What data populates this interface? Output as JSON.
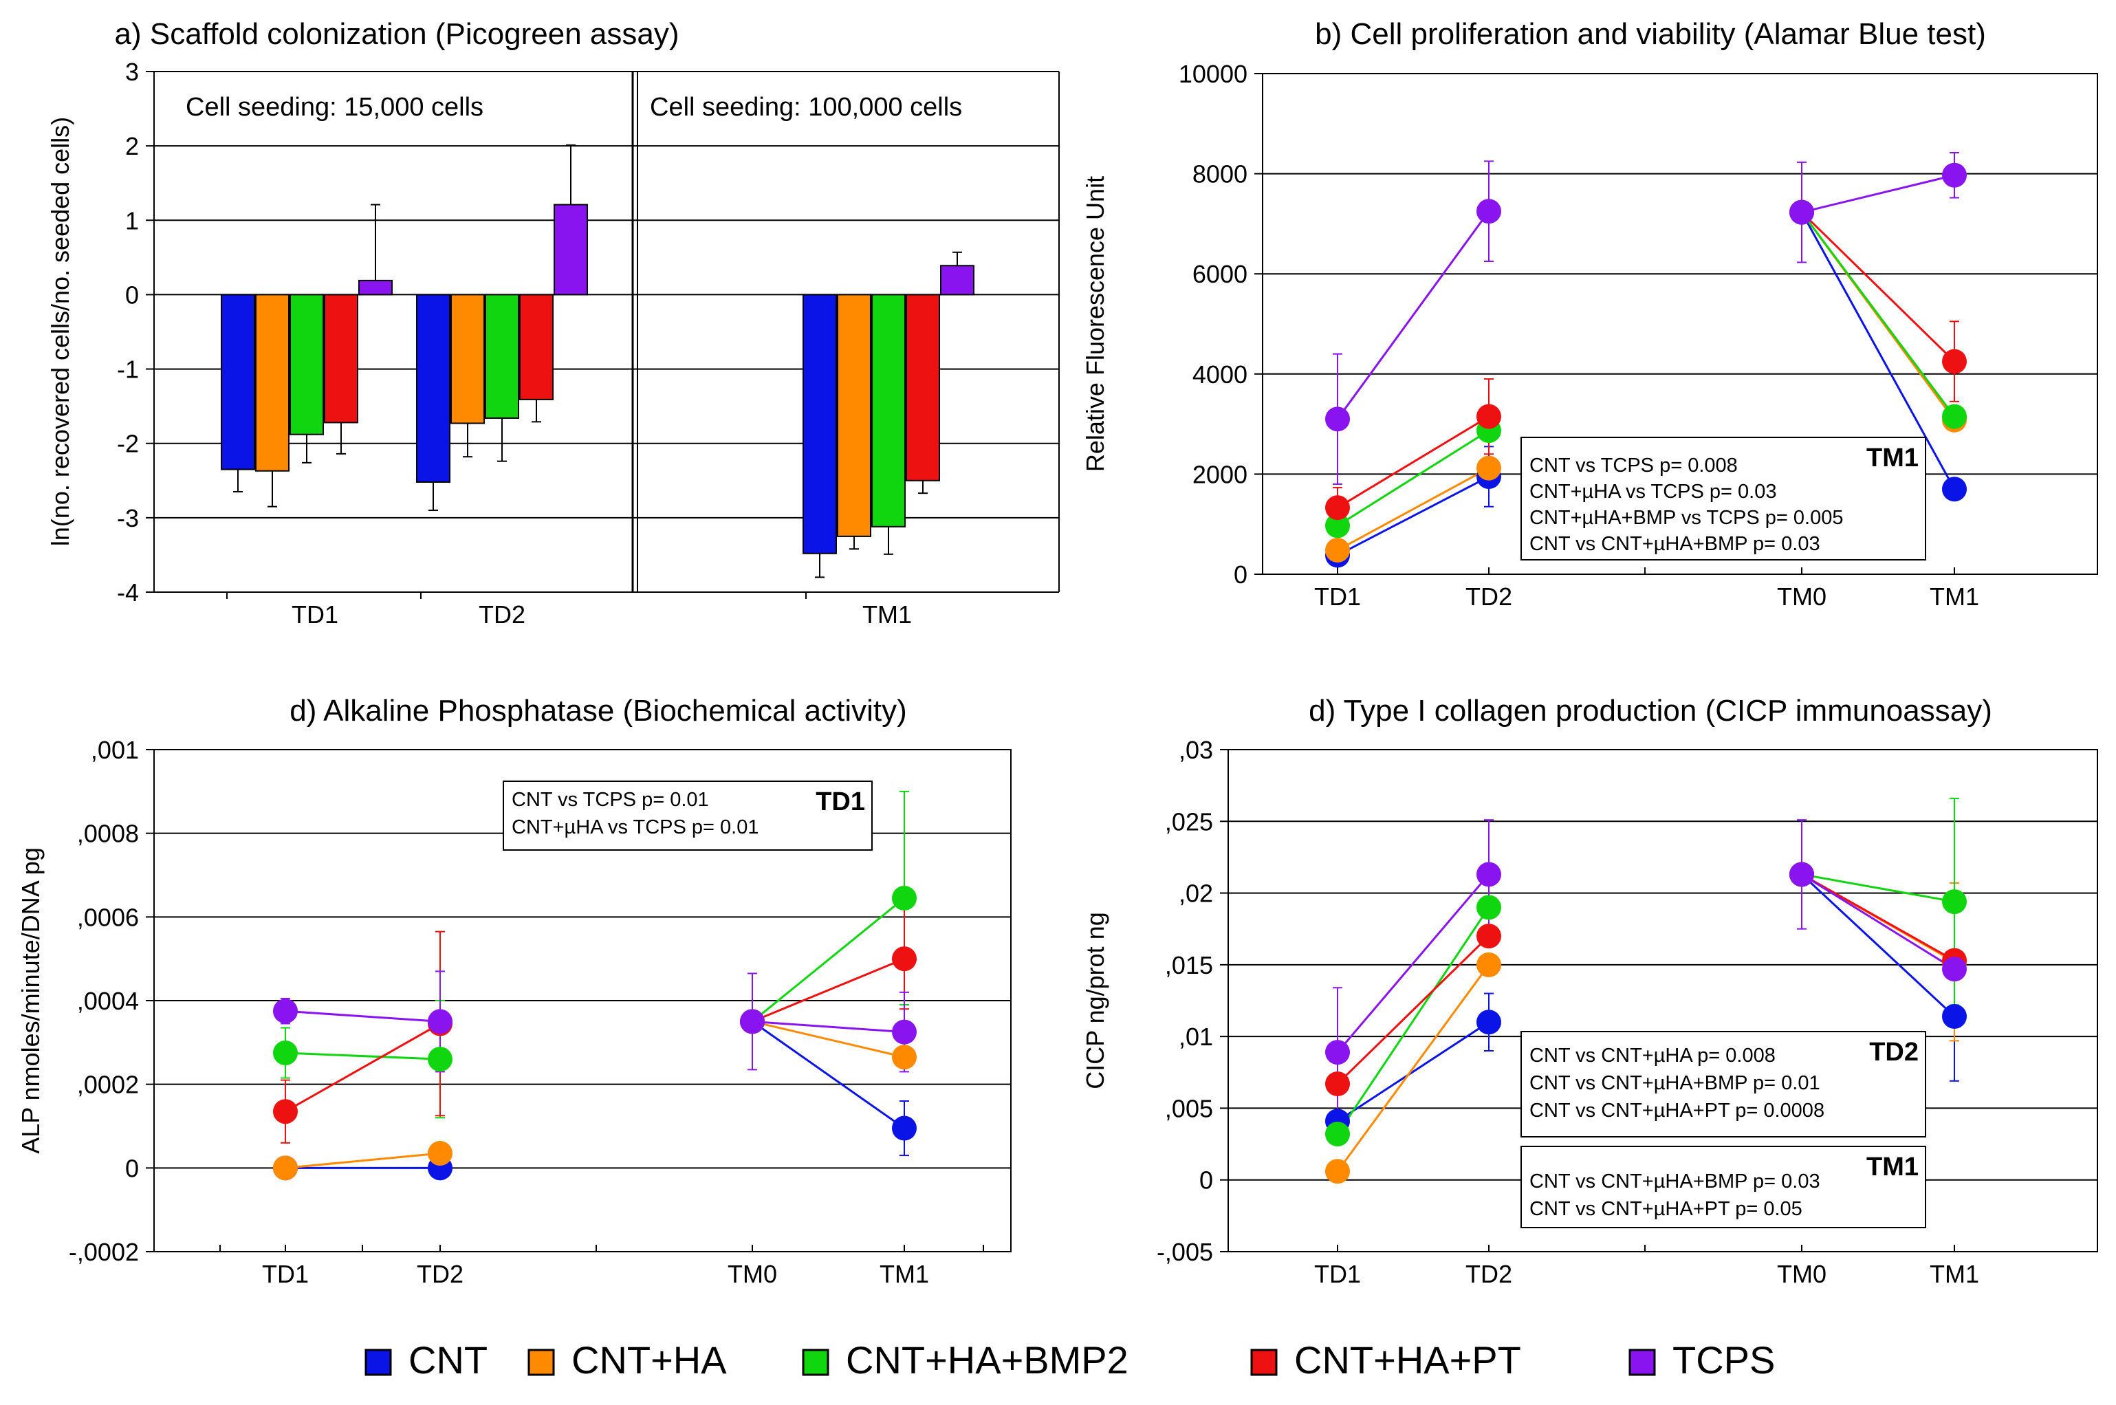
{
  "colors": {
    "CNT": "#0a14e6",
    "CNT+HA": "#ff8a00",
    "CNT+HA+BMP2": "#0fd60f",
    "CNT+HA+PT": "#ee1111",
    "TCPS": "#8a14f0"
  },
  "legend": [
    {
      "key": "CNT",
      "label": "CNT"
    },
    {
      "key": "CNT+HA",
      "label": "CNT+HA"
    },
    {
      "key": "CNT+HA+BMP2",
      "label": "CNT+HA+BMP2"
    },
    {
      "key": "CNT+HA+PT",
      "label": "CNT+HA+PT"
    },
    {
      "key": "TCPS",
      "label": "TCPS"
    }
  ],
  "chart_data": [
    {
      "id": "a",
      "type": "bar",
      "title": "a) Scaffold colonization (Picogreen assay)",
      "ylabel": "ln(no. recovered cells/no. seeded cells)",
      "xlabel": "",
      "ylim": [
        -4,
        3
      ],
      "yticks": [
        -4,
        -3,
        -2,
        -1,
        0,
        1,
        2,
        3
      ],
      "ytick_labels": [
        "-4",
        "-3",
        "-2",
        "-1",
        "0",
        "1",
        "2",
        "3"
      ],
      "grid": true,
      "annotations": [
        "Cell seeding: 15,000 cells",
        "Cell seeding: 100,000 cells"
      ],
      "categories": [
        "TD1",
        "TD2",
        "TM1"
      ],
      "series": [
        {
          "key": "CNT",
          "values": [
            -2.35,
            -2.52,
            -3.48
          ],
          "errors": [
            0.3,
            0.38,
            0.32
          ]
        },
        {
          "key": "CNT+HA",
          "values": [
            -2.37,
            -1.73,
            -3.25
          ],
          "errors": [
            0.48,
            0.45,
            0.17
          ]
        },
        {
          "key": "CNT+HA+BMP2",
          "values": [
            -1.88,
            -1.66,
            -3.12
          ],
          "errors": [
            0.38,
            0.58,
            0.37
          ]
        },
        {
          "key": "CNT+HA+PT",
          "values": [
            -1.72,
            -1.41,
            -2.5
          ],
          "errors": [
            0.42,
            0.3,
            0.17
          ]
        },
        {
          "key": "TCPS",
          "values": [
            0.19,
            1.21,
            0.39
          ],
          "errors": [
            1.02,
            0.8,
            0.18
          ]
        }
      ]
    },
    {
      "id": "b",
      "type": "line",
      "title": "b) Cell proliferation and viability (Alamar Blue test)",
      "ylabel": "Relative Fluorescence Unit",
      "xlabel": "",
      "ylim": [
        0,
        10000
      ],
      "yticks": [
        0,
        2000,
        4000,
        6000,
        8000,
        10000
      ],
      "ytick_labels": [
        "0",
        "2000",
        "4000",
        "6000",
        "8000",
        "10000"
      ],
      "grid": true,
      "x_categories": [
        "TD1",
        "TD2",
        "TM0",
        "TM1"
      ],
      "series": [
        {
          "key": "CNT",
          "values": [
            380,
            1950,
            7230,
            1700
          ],
          "errors": [
            null,
            600,
            null,
            null
          ]
        },
        {
          "key": "CNT+HA",
          "values": [
            480,
            2120,
            7230,
            3080
          ],
          "errors": [
            null,
            null,
            null,
            null
          ]
        },
        {
          "key": "CNT+HA+BMP2",
          "values": [
            970,
            2870,
            7230,
            3150
          ],
          "errors": [
            null,
            null,
            null,
            null
          ]
        },
        {
          "key": "CNT+HA+PT",
          "values": [
            1330,
            3150,
            7230,
            4250
          ],
          "errors": [
            400,
            750,
            null,
            800
          ]
        },
        {
          "key": "TCPS",
          "values": [
            3100,
            7250,
            7230,
            7970
          ],
          "errors": [
            1300,
            1000,
            1000,
            450
          ]
        }
      ],
      "stats_boxes": [
        {
          "heading": "TM1",
          "lines": [
            "CNT vs TCPS  p= 0.008",
            "CNT+µHA vs TCPS  p= 0.03",
            "CNT+µHA+BMP vs TCPS p= 0.005",
            "CNT vs CNT+µHA+BMP p= 0.03"
          ]
        }
      ]
    },
    {
      "id": "c",
      "type": "line",
      "title": "d) Alkaline Phosphatase (Biochemical activity)",
      "ylabel": "ALP nmoles/minute/DNA pg",
      "xlabel": "",
      "ylim": [
        -0.0002,
        0.001
      ],
      "yticks": [
        -0.0002,
        0,
        0.0002,
        0.0004,
        0.0006,
        0.0008,
        0.001
      ],
      "ytick_labels": [
        "-,0002",
        "0",
        ",0002",
        ",0004",
        ",0006",
        ",0008",
        ",001"
      ],
      "grid": true,
      "x_categories": [
        "TD1",
        "TD2",
        "TM0",
        "TM1"
      ],
      "series": [
        {
          "key": "CNT",
          "values": [
            0,
            0,
            0.00035,
            9.5e-05
          ],
          "errors": [
            null,
            null,
            null,
            6.5e-05
          ]
        },
        {
          "key": "CNT+HA",
          "values": [
            0,
            3.5e-05,
            0.00035,
            0.000265
          ],
          "errors": [
            null,
            null,
            null,
            null
          ]
        },
        {
          "key": "CNT+HA+BMP2",
          "values": [
            0.000275,
            0.00026,
            0.00035,
            0.000645
          ],
          "errors": [
            6e-05,
            0.00014,
            null,
            0.000255
          ]
        },
        {
          "key": "CNT+HA+PT",
          "values": [
            0.000135,
            0.000345,
            0.00035,
            0.0005
          ],
          "errors": [
            7.5e-05,
            0.00022,
            null,
            0.00012
          ]
        },
        {
          "key": "TCPS",
          "values": [
            0.000375,
            0.00035,
            0.00035,
            0.000325
          ],
          "errors": [
            3e-05,
            0.00012,
            0.000115,
            9.5e-05
          ]
        }
      ],
      "stats_boxes": [
        {
          "heading": "TD1",
          "lines": [
            "CNT vs TCPS  p= 0.01",
            "CNT+µHA vs TCPS p= 0.01"
          ]
        }
      ]
    },
    {
      "id": "d",
      "type": "line",
      "title": "d) Type I collagen production (CICP immunoassay)",
      "ylabel": "CICP ng/prot ng",
      "xlabel": "",
      "ylim": [
        -0.005,
        0.03
      ],
      "yticks": [
        -0.005,
        0,
        0.005,
        0.01,
        0.015,
        0.02,
        0.025,
        0.03
      ],
      "ytick_labels": [
        "-,005",
        "0",
        ",005",
        ",01",
        ",015",
        ",02",
        ",025",
        ",03"
      ],
      "grid": true,
      "x_categories": [
        "TD1",
        "TD2",
        "TM0",
        "TM1"
      ],
      "series": [
        {
          "key": "CNT",
          "values": [
            0.0041,
            0.011,
            0.0213,
            0.0114
          ],
          "errors": [
            null,
            0.002,
            null,
            0.0045
          ]
        },
        {
          "key": "CNT+HA",
          "values": [
            0.0006,
            0.015,
            0.0213,
            0.0152
          ],
          "errors": [
            null,
            null,
            null,
            0.0055
          ]
        },
        {
          "key": "CNT+HA+BMP2",
          "values": [
            0.0032,
            0.019,
            0.0213,
            0.0194
          ],
          "errors": [
            null,
            null,
            null,
            0.0072
          ]
        },
        {
          "key": "CNT+HA+PT",
          "values": [
            0.0067,
            0.017,
            0.0213,
            0.0153
          ],
          "errors": [
            null,
            null,
            null,
            null
          ]
        },
        {
          "key": "TCPS",
          "values": [
            0.0089,
            0.0213,
            0.0213,
            0.0147
          ],
          "errors": [
            0.0045,
            0.0038,
            0.0038,
            null
          ]
        }
      ],
      "stats_boxes": [
        {
          "heading": "TD2",
          "lines": [
            "CNT vs CNT+µHA  p= 0.008",
            "CNT vs CNT+µHA+BMP p= 0.01",
            "CNT vs CNT+µHA+PT p= 0.0008"
          ]
        },
        {
          "heading": "TM1",
          "lines": [
            "CNT vs CNT+µHA+BMP p= 0.03",
            "CNT vs CNT+µHA+PT p= 0.05"
          ]
        }
      ]
    }
  ]
}
